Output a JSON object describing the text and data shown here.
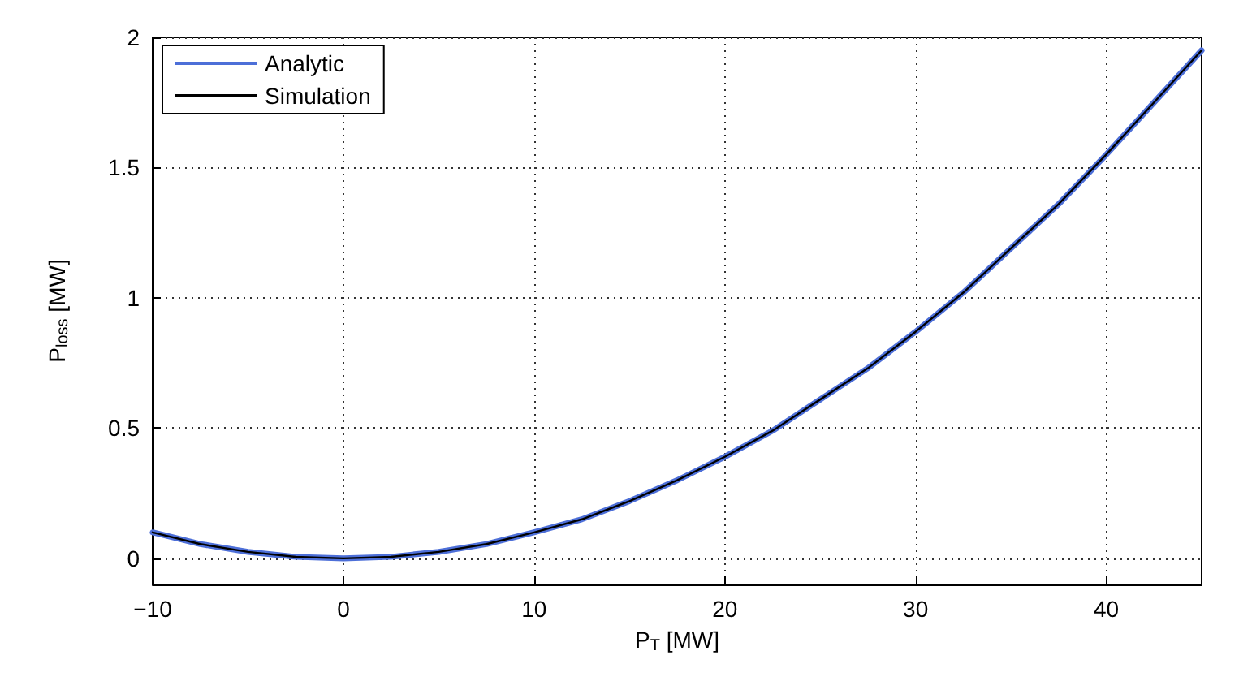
{
  "chart_data": {
    "type": "line",
    "xlabel": "P$_{T}$ [MW]",
    "ylabel": "P$_{loss}$ [MW]",
    "xlim": [
      -10,
      45
    ],
    "xticks": [
      {
        "value": -10,
        "label": "−10"
      },
      0,
      10,
      20,
      30,
      40
    ],
    "ylim": [
      -0.1,
      2
    ],
    "yticks": [
      0,
      0.5,
      1,
      1.5,
      2
    ],
    "x": [
      -10,
      -7.5,
      -5,
      -2.5,
      0,
      2.5,
      5,
      7.5,
      10,
      12.5,
      15,
      17.5,
      20,
      22.5,
      25,
      27.5,
      30,
      32.5,
      35,
      37.5,
      40,
      42.5,
      45
    ],
    "series": [
      {
        "name": "Analytic",
        "color": "#4d6fd8",
        "values": [
          0.1,
          0.055,
          0.025,
          0.006,
          0,
          0.006,
          0.025,
          0.055,
          0.1,
          0.15,
          0.22,
          0.3,
          0.39,
          0.49,
          0.61,
          0.73,
          0.87,
          1.02,
          1.19,
          1.36,
          1.55,
          1.75,
          1.95
        ]
      },
      {
        "name": "Simulation",
        "color": "#000000",
        "values": [
          0.1,
          0.055,
          0.025,
          0.006,
          0,
          0.006,
          0.025,
          0.055,
          0.1,
          0.15,
          0.22,
          0.3,
          0.39,
          0.49,
          0.61,
          0.73,
          0.87,
          1.02,
          1.19,
          1.36,
          1.55,
          1.75,
          1.95
        ]
      }
    ],
    "grid": true,
    "legend": "top left",
    "marker": "none",
    "line_style": "solid"
  }
}
